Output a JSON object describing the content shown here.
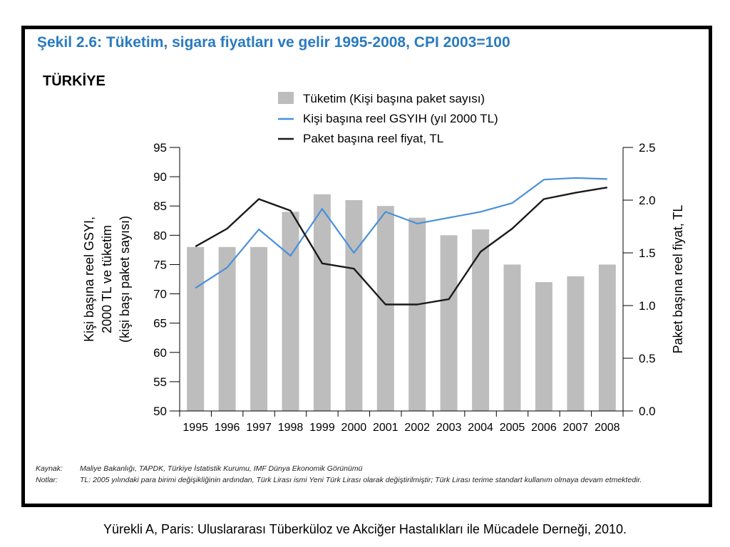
{
  "figure": {
    "title": "Şekil 2.6: Tüketim, sigara fiyatları ve gelir 1995-2008, CPI 2003=100",
    "country": "TÜRKİYE"
  },
  "chart_data": {
    "type": "bar",
    "x": [
      "1995",
      "1996",
      "1997",
      "1998",
      "1999",
      "2000",
      "2001",
      "2002",
      "2003",
      "2004",
      "2005",
      "2006",
      "2007",
      "2008"
    ],
    "ylabel_left": "Kişi başına reel GSYI, 2000 TL ve tüketim (kişi başı paket sayısı)",
    "ylabel_left_lines": [
      "Kişi başına reel GSYI,",
      "2000 TL ve tüketim",
      "(kişi başı paket sayısı)"
    ],
    "ylabel_right": "Paket başına reel fiyat, TL",
    "ylim_left": [
      50,
      95
    ],
    "ylim_right": [
      0,
      2.5
    ],
    "left_ticks": [
      "50",
      "55",
      "60",
      "65",
      "70",
      "75",
      "80",
      "85",
      "90",
      "95"
    ],
    "right_ticks": [
      "0.0",
      "0.5",
      "1.0",
      "1.5",
      "2.0",
      "2.5"
    ],
    "grid": false,
    "legend_position": "top",
    "series": [
      {
        "name": "Tüketim (Kişi başına paket sayısı)",
        "kind": "bar",
        "axis": "left",
        "color": "#bdbdbd",
        "values": [
          78,
          78,
          78,
          84,
          87,
          86,
          85,
          83,
          80,
          81,
          75,
          72,
          73,
          75
        ]
      },
      {
        "name": "Kişi başına  reel GSYIH (yıl 2000 TL)",
        "kind": "line",
        "axis": "left",
        "color": "#4a90d9",
        "values": [
          71,
          74.5,
          81,
          76.5,
          84.5,
          77,
          84,
          82,
          83,
          84,
          85.5,
          89.5,
          89.8,
          89.6
        ]
      },
      {
        "name": "Paket başına reel fiyat, TL",
        "kind": "line",
        "axis": "right",
        "color": "#1a1a1a",
        "values": [
          1.56,
          1.73,
          2.01,
          1.9,
          1.4,
          1.35,
          1.01,
          1.01,
          1.06,
          1.51,
          1.73,
          2.01,
          2.07,
          2.12
        ]
      }
    ]
  },
  "footer": {
    "source_label": "Kaynak:",
    "source_text": "Maliye Bakanlığı, TAPDK, Türkiye İstatistik Kurumu, IMF Dünya Ekonomik Görünümü",
    "notes_label": "Notlar:",
    "notes_text": "TL: 2005 yılındaki para birimi değişikliğinin ardından, Türk Lirası ismi Yeni Türk Lirası olarak değiştirilmiştir; Türk Lirası terime standart kullanım olmaya devam etmektedir."
  },
  "citation": "Yürekli A, Paris: Uluslararası Tüberküloz ve Akciğer Hastalıkları ile Mücadele Derneği, 2010."
}
